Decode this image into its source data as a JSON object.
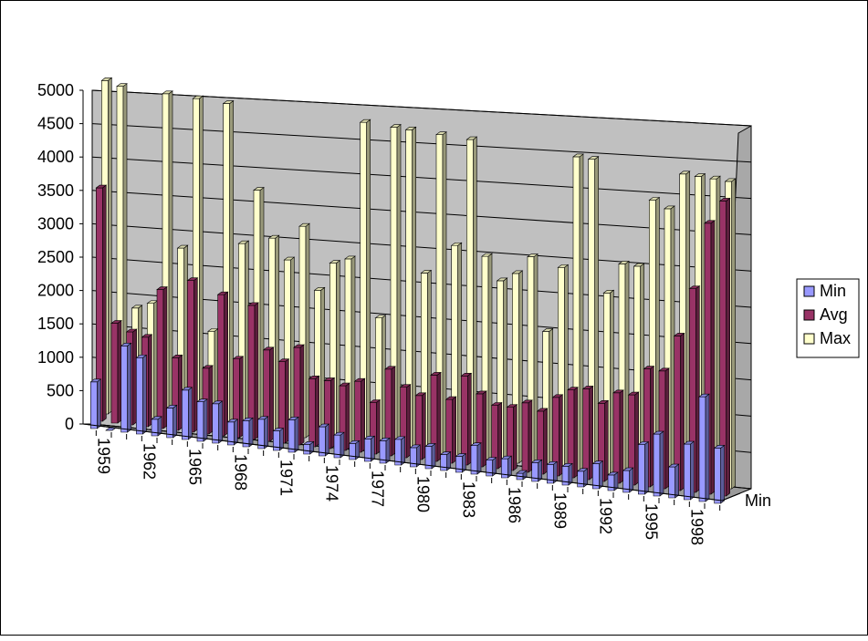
{
  "colors": {
    "min": "#9999ff",
    "avg": "#993366",
    "max": "#ffffcc",
    "wall": "#c0c0c0",
    "gridline": "#000000"
  },
  "chart_data": {
    "type": "bar",
    "title": "",
    "xlabel": "",
    "ylabel": "",
    "ylim": [
      0,
      5000
    ],
    "yticks": [
      "0",
      "500",
      "1000",
      "1500",
      "2000",
      "2500",
      "3000",
      "3500",
      "4000",
      "4500",
      "5000"
    ],
    "grid": true,
    "legend_position": "right",
    "depth_axis_label": "Min",
    "categories": [
      "1959",
      "1960",
      "1961",
      "1962",
      "1963",
      "1964",
      "1965",
      "1966",
      "1967",
      "1968",
      "1969",
      "1970",
      "1971",
      "1972",
      "1973",
      "1974",
      "1975",
      "1976",
      "1977",
      "1978",
      "1979",
      "1980",
      "1981",
      "1982",
      "1983",
      "1984",
      "1985",
      "1986",
      "1987",
      "1988",
      "1989",
      "1990",
      "1991",
      "1992",
      "1993",
      "1994",
      "1995",
      "1996",
      "1997",
      "1998",
      "1999",
      "2000"
    ],
    "x_tick_labels": [
      "1959",
      "1962",
      "1965",
      "1968",
      "1971",
      "1974",
      "1977",
      "1980",
      "1983",
      "1986",
      "1989",
      "1992",
      "1995",
      "1998"
    ],
    "series": [
      {
        "name": "Min",
        "values": [
          700,
          0,
          1300,
          1150,
          250,
          450,
          750,
          600,
          600,
          350,
          400,
          450,
          300,
          500,
          150,
          450,
          350,
          250,
          350,
          350,
          400,
          300,
          350,
          250,
          250,
          450,
          250,
          300,
          100,
          300,
          300,
          300,
          250,
          400,
          250,
          350,
          800,
          1000,
          500,
          900,
          1700,
          900
        ]
      },
      {
        "name": "Avg",
        "values": [
          3500,
          1500,
          1400,
          1350,
          2100,
          1100,
          2300,
          1000,
          2150,
          1200,
          2050,
          1400,
          1250,
          1500,
          1050,
          1050,
          1000,
          1100,
          800,
          1350,
          1100,
          1000,
          1350,
          1000,
          1400,
          1150,
          1000,
          1000,
          1100,
          1000,
          1250,
          1400,
          1450,
          1250,
          1450,
          1450,
          1900,
          1900,
          2500,
          3300,
          4400,
          4800
        ]
      },
      {
        "name": "Max",
        "values": [
          5000,
          4950,
          1650,
          1750,
          4950,
          2650,
          4950,
          1450,
          4950,
          2850,
          3700,
          3000,
          2700,
          3250,
          2300,
          2750,
          2850,
          5000,
          2000,
          5000,
          5000,
          2800,
          5000,
          3300,
          5000,
          3200,
          2850,
          3000,
          3300,
          2150,
          3200,
          5000,
          5000,
          2900,
          3400,
          3400,
          4500,
          4400,
          5000,
          5000,
          5000,
          5000
        ]
      }
    ]
  }
}
